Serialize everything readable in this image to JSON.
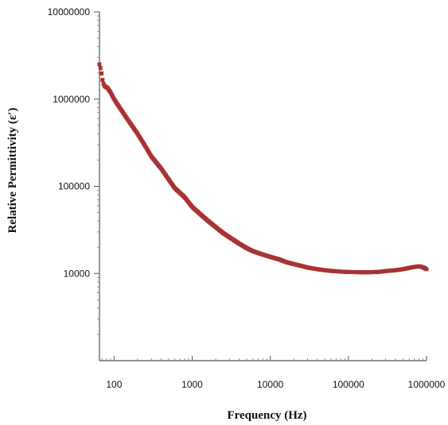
{
  "chart_data": {
    "type": "scatter",
    "xlabel": "Frequency (Hz)",
    "ylabel": "Relative Permittivity (ε′)",
    "x_scale": "log",
    "y_scale": "log",
    "xlim": [
      65,
      1000000
    ],
    "ylim": [
      1000,
      10000000
    ],
    "x_ticks": [
      {
        "value": 100,
        "label": "100"
      },
      {
        "value": 1000,
        "label": "1000"
      },
      {
        "value": 10000,
        "label": "10000"
      },
      {
        "value": 100000,
        "label": "100000"
      },
      {
        "value": 1000000,
        "label": "1000000"
      }
    ],
    "y_ticks": [
      {
        "value": 10000,
        "label": "10000"
      },
      {
        "value": 100000,
        "label": "100000"
      },
      {
        "value": 1000000,
        "label": "1000000"
      },
      {
        "value": 10000000,
        "label": "10000000"
      }
    ],
    "grid": false,
    "marker_color": "#a83232",
    "series": [
      {
        "x": [
          65,
          68,
          72,
          76,
          82,
          90,
          100,
          120,
          150,
          200,
          250,
          300,
          400,
          500,
          600,
          800,
          1000,
          1300,
          1600,
          2000,
          2500,
          3000,
          4000,
          5000,
          6000,
          8000,
          10000,
          13000,
          16000,
          20000,
          25000,
          30000,
          40000,
          50000,
          60000,
          80000,
          100000,
          130000,
          160000,
          200000,
          250000,
          300000,
          400000,
          500000,
          600000,
          700000,
          800000,
          900000,
          1000000
        ],
        "y": [
          2500000,
          2150000,
          1550000,
          1400000,
          1350000,
          1200000,
          1000000,
          780000,
          580000,
          400000,
          290000,
          220000,
          160000,
          120000,
          95000,
          75000,
          58000,
          47000,
          40000,
          34000,
          29000,
          26000,
          22000,
          19500,
          18000,
          16500,
          15500,
          14500,
          13500,
          12800,
          12200,
          11700,
          11200,
          10900,
          10700,
          10500,
          10400,
          10350,
          10300,
          10350,
          10450,
          10650,
          10900,
          11200,
          11600,
          11900,
          12100,
          11800,
          11200
        ]
      }
    ]
  }
}
